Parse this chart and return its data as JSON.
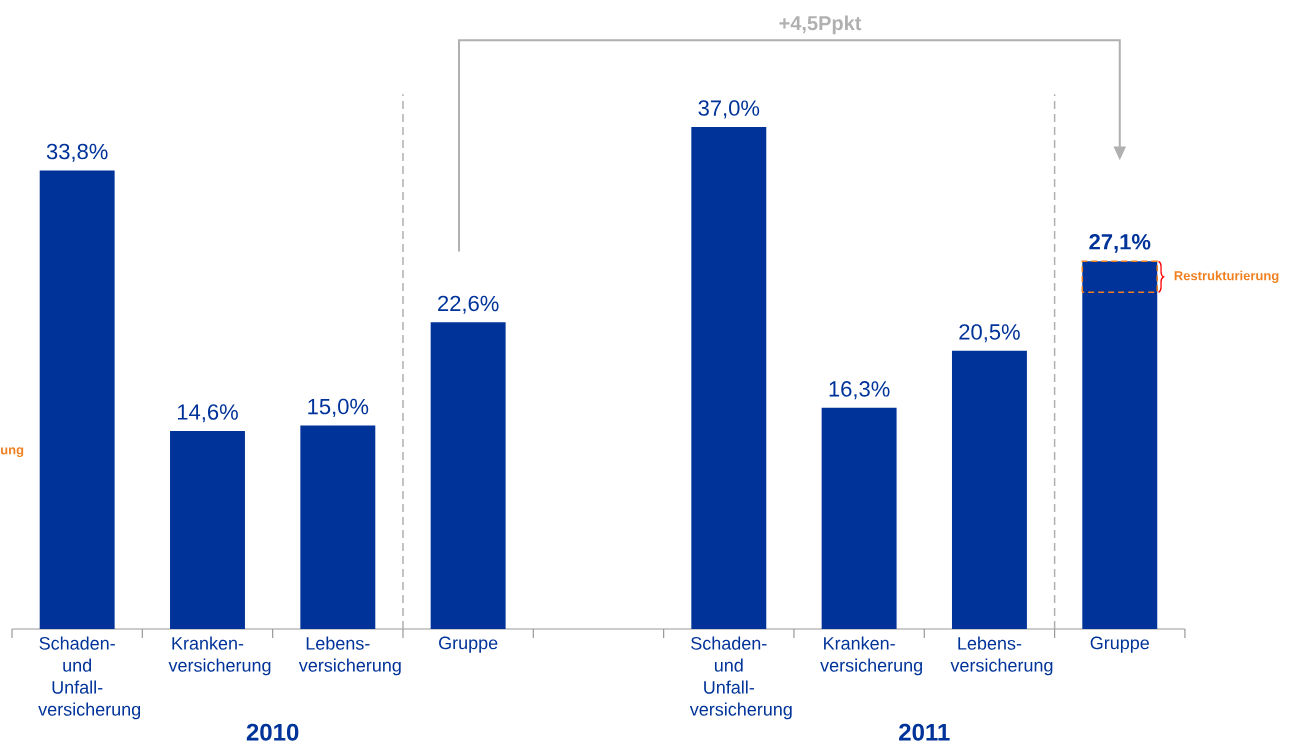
{
  "chart_data": {
    "type": "bar",
    "categories": [
      "Schaden- und Unfall-versicherung",
      "Kranken-versicherung",
      "Lebens-versicherung",
      "Gruppe",
      null,
      "Schaden- und Unfall-versicherung",
      "Kranken-versicherung",
      "Lebens-versicherung",
      "Gruppe"
    ],
    "values": [
      33.8,
      14.6,
      15.0,
      22.6,
      null,
      37.0,
      16.3,
      20.5,
      27.1
    ],
    "value_labels": [
      "33,8%",
      "14,6%",
      "15,0%",
      "22,6%",
      null,
      "37,0%",
      "16,3%",
      "20,5%",
      "**27,1%**"
    ],
    "color": "#003399",
    "annotations": [
      "+4,5Ppkt",
      "2010",
      "2011",
      "ung",
      "Restrukturierung"
    ]
  }
}
